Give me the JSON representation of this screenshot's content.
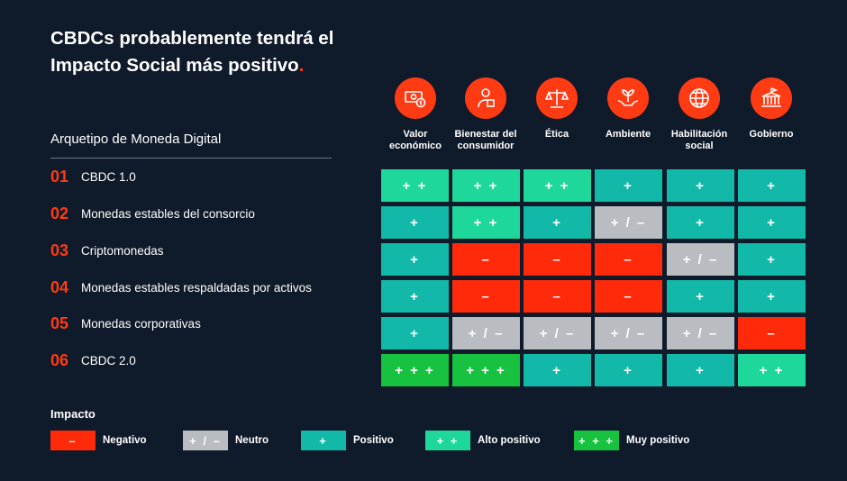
{
  "title": {
    "line1": "CBDCs probablemente tendrá el",
    "line2": "Impacto Social más positivo",
    "dot": "."
  },
  "row_header": "Arquetipo de Moneda Digital",
  "colors": {
    "negative": "#ff2a0a",
    "neutral": "#b9bcc1",
    "positive": "#12b8a8",
    "high_positive": "#1ed79a",
    "very_positive": "#16c23f",
    "accent": "#ff3b14",
    "background": "#0f1a2a"
  },
  "chart_data": {
    "type": "table",
    "columns": [
      {
        "label_lines": [
          "Valor",
          "económico"
        ],
        "icon": "money-coin-icon"
      },
      {
        "label_lines": [
          "Bienestar del",
          "consumidor"
        ],
        "icon": "consumer-icon"
      },
      {
        "label_lines": [
          "Ética"
        ],
        "icon": "scales-icon"
      },
      {
        "label_lines": [
          "Ambiente"
        ],
        "icon": "plant-hands-icon"
      },
      {
        "label_lines": [
          "Habilitación",
          "social"
        ],
        "icon": "globe-icon"
      },
      {
        "label_lines": [
          "Gobierno"
        ],
        "icon": "government-building-icon"
      }
    ],
    "rows": [
      {
        "num": "01",
        "label": "CBDC 1.0",
        "values": [
          "high",
          "high",
          "high",
          "pos",
          "pos",
          "pos"
        ]
      },
      {
        "num": "02",
        "label": "Monedas estables del consorcio",
        "values": [
          "pos",
          "high",
          "pos",
          "neu",
          "pos",
          "pos"
        ]
      },
      {
        "num": "03",
        "label": "Criptomonedas",
        "values": [
          "pos",
          "neg",
          "neg",
          "neg",
          "neu",
          "pos"
        ]
      },
      {
        "num": "04",
        "label": "Monedas estables respaldadas por activos",
        "values": [
          "pos",
          "neg",
          "neg",
          "neg",
          "pos",
          "pos"
        ]
      },
      {
        "num": "05",
        "label": "Monedas corporativas",
        "values": [
          "pos",
          "neu",
          "neu",
          "neu",
          "neu",
          "neg"
        ]
      },
      {
        "num": "06",
        "label": "CBDC 2.0",
        "values": [
          "very",
          "very",
          "pos",
          "pos",
          "pos",
          "high"
        ]
      }
    ],
    "scale": {
      "neg": {
        "symbol": "–",
        "label": "Negativo"
      },
      "neu": {
        "symbol": "+ / –",
        "label": "Neutro"
      },
      "pos": {
        "symbol": "+",
        "label": "Positivo"
      },
      "high": {
        "symbol": "+ +",
        "label": "Alto positivo"
      },
      "very": {
        "symbol": "+ + +",
        "label": "Muy positivo"
      }
    }
  },
  "legend": {
    "title": "Impacto",
    "order": [
      "neg",
      "neu",
      "pos",
      "high",
      "very"
    ]
  }
}
